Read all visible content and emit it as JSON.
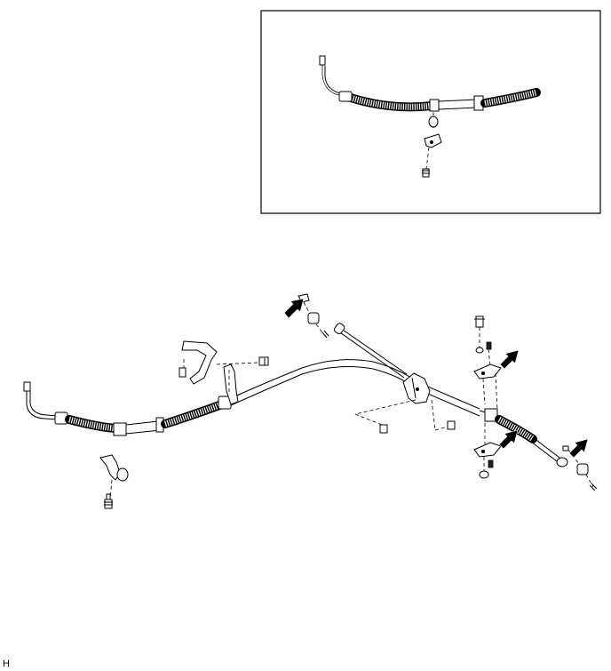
{
  "figure": {
    "corner_code": "H"
  },
  "colors": {
    "line": "#000000",
    "background": "#ffffff"
  },
  "icons": {
    "pointer": "filled-arrow-icon"
  }
}
